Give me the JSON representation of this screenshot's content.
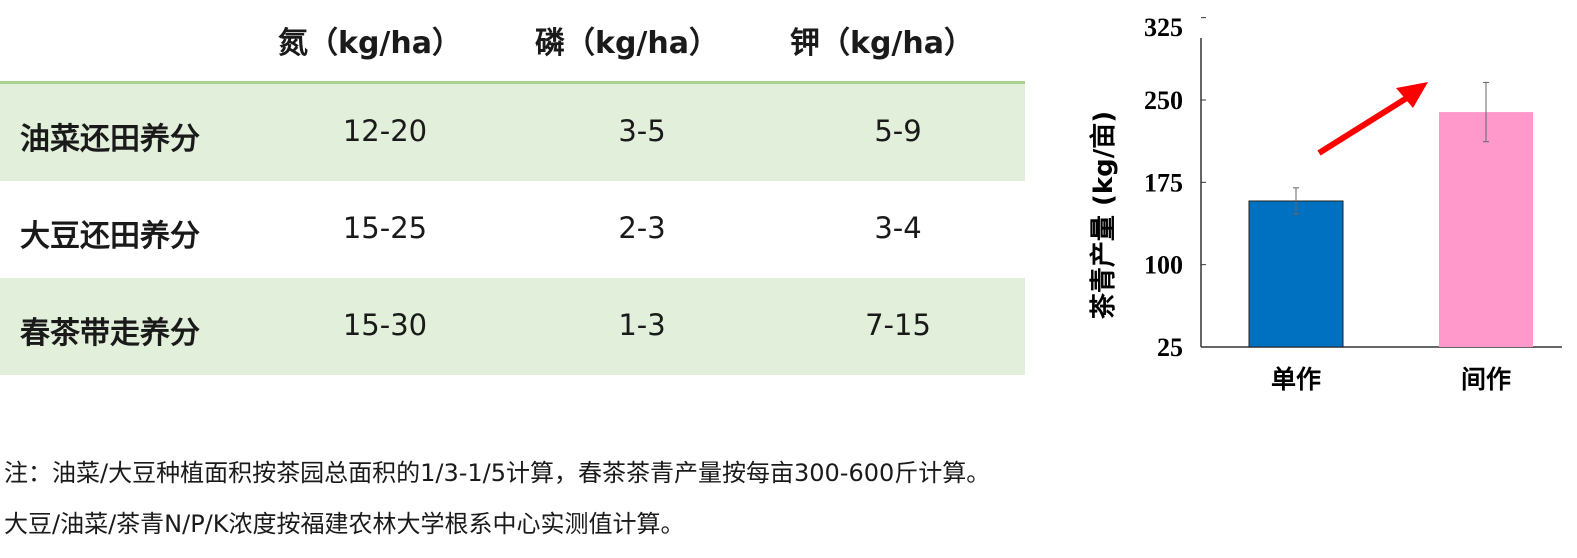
{
  "table": {
    "headers": [
      "氮（kg/ha）",
      "磷（kg/ha）",
      "钾（kg/ha）"
    ],
    "rows": [
      {
        "label": "油菜还田养分",
        "values": [
          "12-20",
          "3-5",
          "5-9"
        ]
      },
      {
        "label": "大豆还田养分",
        "values": [
          "15-25",
          "2-3",
          "3-4"
        ]
      },
      {
        "label": "春茶带走养分",
        "values": [
          "15-30",
          "1-3",
          "7-15"
        ]
      }
    ],
    "header_line_color": "#a9d08e",
    "row_highlight_color": "#e2efda"
  },
  "notes": [
    "注：油菜/大豆种植面积按茶园总面积的1/3-1/5计算，春茶茶青产量按每亩300-600斤计算。",
    "大豆/油菜/茶青N/P/K浓度按福建农林大学根系中心实测值计算。"
  ],
  "chart_data": {
    "type": "bar",
    "categories": [
      "单作",
      "间作"
    ],
    "values": [
      158,
      239
    ],
    "errors": [
      12,
      27
    ],
    "colors": [
      "#0070c0",
      "#ff99cc"
    ],
    "ylabel": "茶青产量 (kg/亩)",
    "yticks": [
      25,
      100,
      175,
      250,
      325
    ],
    "ylim": [
      25,
      325
    ],
    "annotation": "red-up-arrow"
  }
}
